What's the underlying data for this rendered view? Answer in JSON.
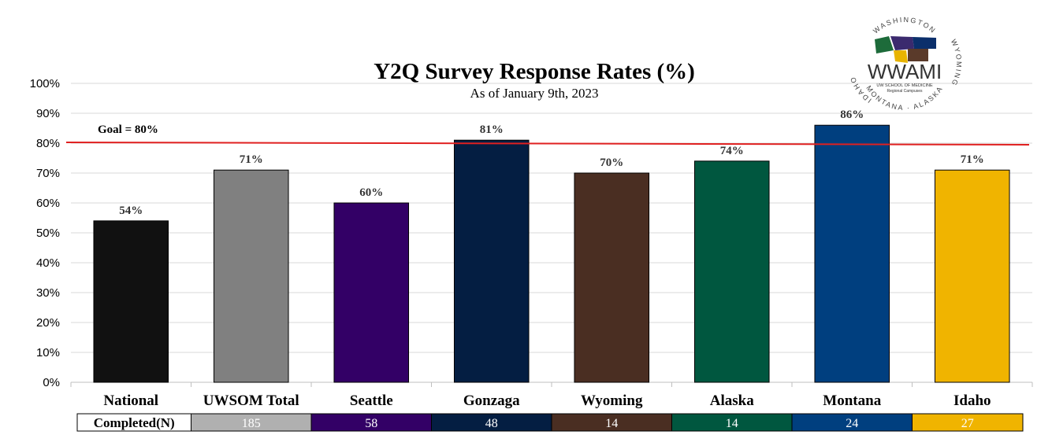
{
  "chart_data": {
    "type": "bar",
    "title": "Y2Q Survey Response Rates (%)",
    "subtitle": "As of January 9th, 2023",
    "categories": [
      "National",
      "UWSOM Total",
      "Seattle",
      "Gonzaga",
      "Wyoming",
      "Alaska",
      "Montana",
      "Idaho"
    ],
    "values": [
      54,
      71,
      60,
      81,
      70,
      74,
      86,
      71
    ],
    "data_labels": [
      "54%",
      "71%",
      "60%",
      "81%",
      "70%",
      "74%",
      "86%",
      "71%"
    ],
    "colors": [
      "#111111",
      "#808080",
      "#330066",
      "#041e42",
      "#4a2e22",
      "#00573f",
      "#003f7f",
      "#f0b400"
    ],
    "ylim": [
      0,
      100
    ],
    "yticks": [
      "0%",
      "10%",
      "20%",
      "30%",
      "40%",
      "50%",
      "60%",
      "70%",
      "80%",
      "90%",
      "100%"
    ],
    "grid": true,
    "goal": {
      "value": 80,
      "label": "Goal = 80%",
      "color": "#e02020"
    },
    "completed_table": {
      "header": "Completed(N)",
      "values": [
        "185",
        "58",
        "48",
        "14",
        "14",
        "24",
        "27"
      ],
      "colors": [
        "#b0b0b0",
        "#330066",
        "#041e42",
        "#4a2e22",
        "#00573f",
        "#003f7f",
        "#f0b400"
      ]
    }
  },
  "logo": {
    "name": "WWAMI",
    "ring_top": "WASHINGTON",
    "ring_right": "WYOMING",
    "ring_bottom": "MONTANA · ALASKA",
    "ring_left": "IDAHO",
    "line1": "UW SCHOOL OF MEDICINE",
    "line2": "Regional Campuses"
  }
}
